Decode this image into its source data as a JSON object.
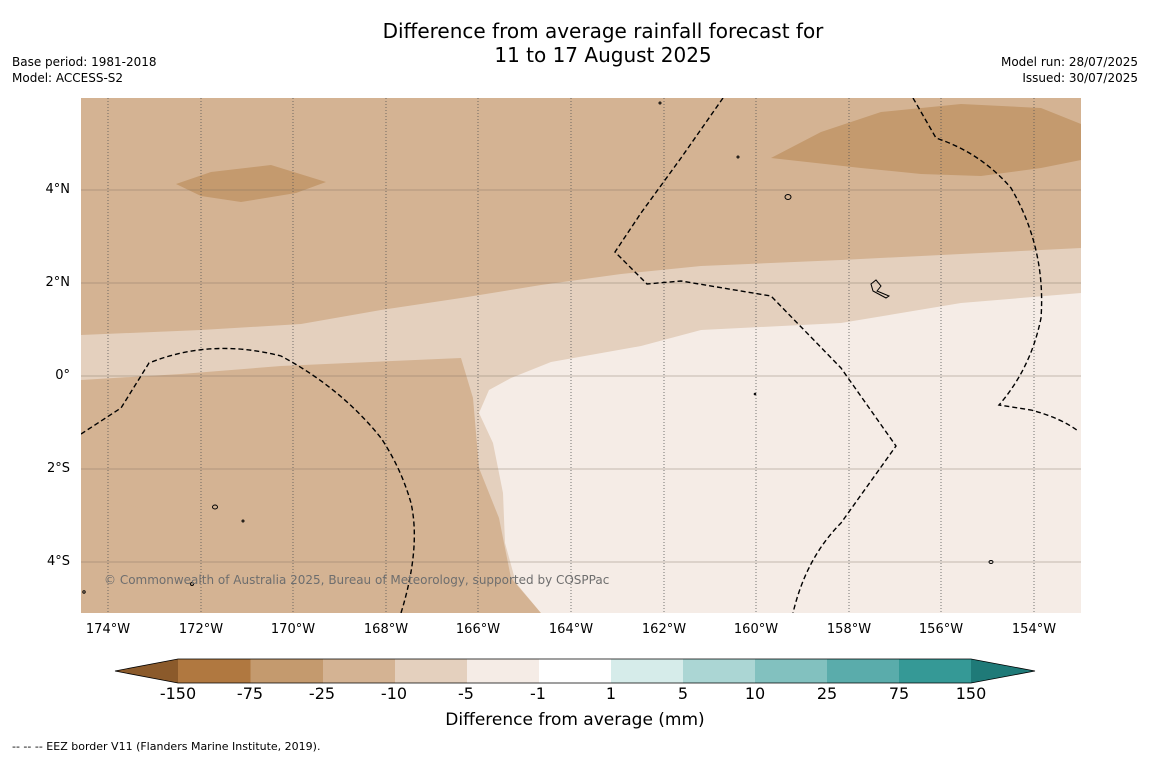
{
  "title_line1": "Difference from average rainfall forecast for",
  "title_line2": "11 to 17 August 2025",
  "base_period": "Base period: 1981-2018",
  "model": "Model: ACCESS-S2",
  "model_run": "Model run: 28/07/2025",
  "issued": "Issued: 30/07/2025",
  "copyright": "© Commonwealth of Australia 2025, Bureau of Meteorology, supported by COSPPac",
  "footnote": "--  --  -- EEZ border V11 (Flanders Marine Institute, 2019).",
  "lat_labels": [
    "4°N",
    "2°N",
    "0°",
    "2°S",
    "4°S"
  ],
  "lon_labels": [
    "174°W",
    "172°W",
    "170°W",
    "168°W",
    "166°W",
    "164°W",
    "162°W",
    "160°W",
    "158°W",
    "156°W",
    "154°W"
  ],
  "colorbar": {
    "title": "Difference from average (mm)",
    "ticks": [
      "-150",
      "-75",
      "-25",
      "-10",
      "-5",
      "-1",
      "1",
      "5",
      "10",
      "25",
      "75",
      "150"
    ],
    "colors": {
      "lt_minus150": "#8b5a2b",
      "c1": "#b07840",
      "c2": "#c49a6e",
      "c3": "#d4b393",
      "c4": "#e4d0be",
      "c5": "#f5ece6",
      "c6": "#ffffff",
      "c7": "#d6ecea",
      "c8": "#abd6d4",
      "c9": "#82c1bf",
      "c10": "#5aacab",
      "c11": "#359996",
      "gt_150": "#1f7a78"
    }
  }
}
